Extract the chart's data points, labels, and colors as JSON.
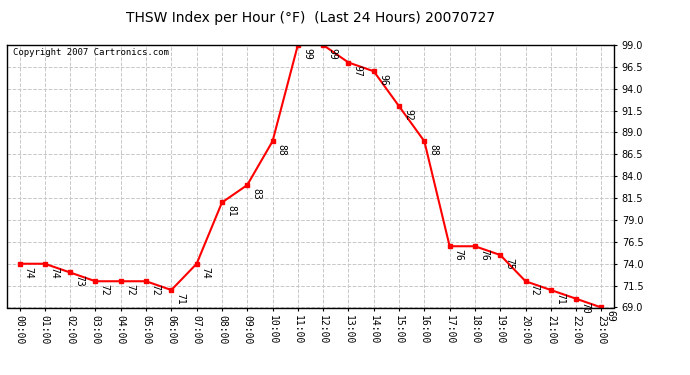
{
  "title": "THSW Index per Hour (°F)  (Last 24 Hours) 20070727",
  "copyright": "Copyright 2007 Cartronics.com",
  "hours": [
    0,
    1,
    2,
    3,
    4,
    5,
    6,
    7,
    8,
    9,
    10,
    11,
    12,
    13,
    14,
    15,
    16,
    17,
    18,
    19,
    20,
    21,
    22,
    23
  ],
  "values": [
    74,
    74,
    73,
    72,
    72,
    72,
    71,
    74,
    81,
    83,
    88,
    99,
    99,
    97,
    96,
    92,
    88,
    76,
    76,
    75,
    72,
    71,
    70,
    69
  ],
  "xlabels": [
    "00:00",
    "01:00",
    "02:00",
    "03:00",
    "04:00",
    "05:00",
    "06:00",
    "07:00",
    "08:00",
    "09:00",
    "10:00",
    "11:00",
    "12:00",
    "13:00",
    "14:00",
    "15:00",
    "16:00",
    "17:00",
    "18:00",
    "19:00",
    "20:00",
    "21:00",
    "22:00",
    "23:00"
  ],
  "ylim": [
    69.0,
    99.0
  ],
  "yticks": [
    69.0,
    71.5,
    74.0,
    76.5,
    79.0,
    81.5,
    84.0,
    86.5,
    89.0,
    91.5,
    94.0,
    96.5,
    99.0
  ],
  "line_color": "red",
  "marker": "s",
  "marker_size": 3,
  "bg_color": "#ffffff",
  "grid_color": "#c8c8c8",
  "label_fontsize": 7,
  "tick_fontsize": 7,
  "title_fontsize": 10,
  "copyright_fontsize": 6.5
}
